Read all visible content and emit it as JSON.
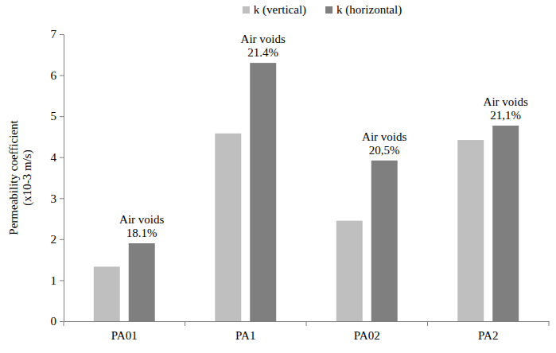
{
  "chart_data": {
    "type": "bar",
    "categories": [
      "PA01",
      "PA1",
      "PA02",
      "PA2"
    ],
    "series": [
      {
        "name": "k (vertical)",
        "color": "#bfbfbf",
        "values": [
          1.33,
          4.58,
          2.45,
          4.42
        ]
      },
      {
        "name": "k (horizontal)",
        "color": "#7f7f7f",
        "values": [
          1.9,
          6.3,
          3.92,
          4.77
        ]
      }
    ],
    "y_label": [
      "Permeability coefficient",
      "(x10-3 m/s)"
    ],
    "annotations": [
      [
        "Air voids",
        "18.1%"
      ],
      [
        "Air voids",
        "21.4%"
      ],
      [
        "Air voids",
        "20,5%"
      ],
      [
        "Air voids",
        "21,1%"
      ]
    ],
    "ylim": [
      0,
      7
    ],
    "yticks": [
      0,
      1,
      2,
      3,
      4,
      5,
      6,
      7
    ],
    "grid": false,
    "legend": "top"
  }
}
